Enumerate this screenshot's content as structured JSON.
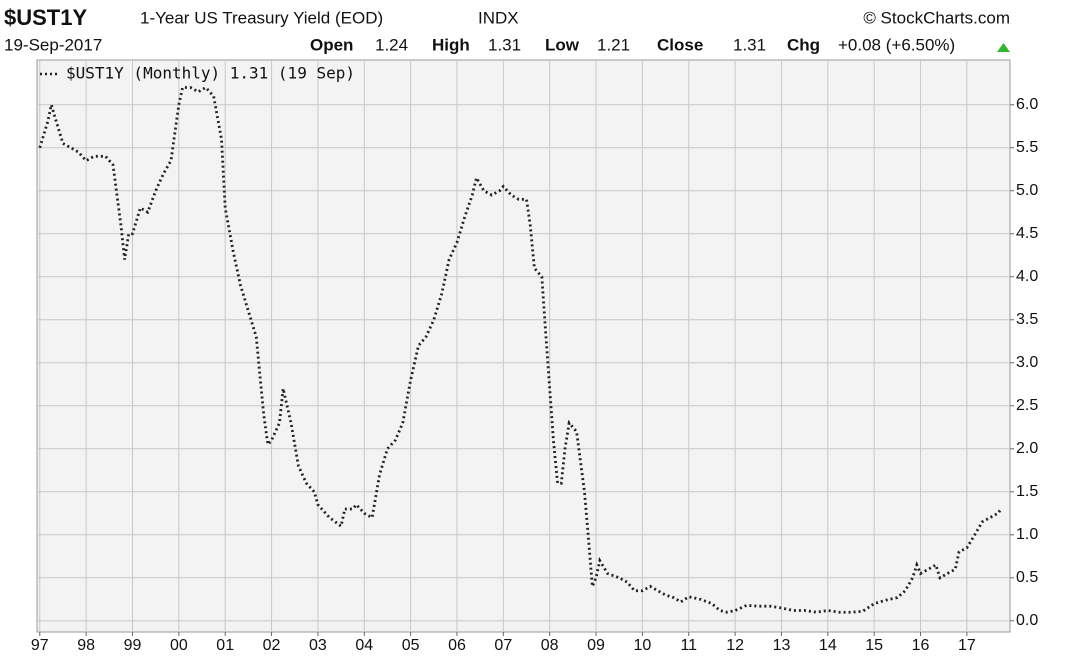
{
  "header": {
    "symbol": "$UST1Y",
    "name": "1-Year US Treasury Yield (EOD)",
    "exchange": "INDX",
    "source": "© StockCharts.com",
    "date": "19-Sep-2017",
    "quote": [
      {
        "label": "Open",
        "value": "1.24"
      },
      {
        "label": "High",
        "value": "1.31"
      },
      {
        "label": "Low",
        "value": "1.21"
      },
      {
        "label": "Close",
        "value": "1.31"
      },
      {
        "label": "Chg",
        "value": "+0.08 (+6.50%)"
      }
    ]
  },
  "chart_data": {
    "type": "line",
    "grid": true,
    "line_style": "dotted",
    "xlim": [
      1996.94,
      2017.93
    ],
    "ylim": [
      -0.13,
      6.52
    ],
    "xticks": [
      {
        "value": 1997,
        "label": "97"
      },
      {
        "value": 1998,
        "label": "98"
      },
      {
        "value": 1999,
        "label": "99"
      },
      {
        "value": 2000,
        "label": "00"
      },
      {
        "value": 2001,
        "label": "01"
      },
      {
        "value": 2002,
        "label": "02"
      },
      {
        "value": 2003,
        "label": "03"
      },
      {
        "value": 2004,
        "label": "04"
      },
      {
        "value": 2005,
        "label": "05"
      },
      {
        "value": 2006,
        "label": "06"
      },
      {
        "value": 2007,
        "label": "07"
      },
      {
        "value": 2008,
        "label": "08"
      },
      {
        "value": 2009,
        "label": "09"
      },
      {
        "value": 2010,
        "label": "10"
      },
      {
        "value": 2011,
        "label": "11"
      },
      {
        "value": 2012,
        "label": "12"
      },
      {
        "value": 2013,
        "label": "13"
      },
      {
        "value": 2014,
        "label": "14"
      },
      {
        "value": 2015,
        "label": "15"
      },
      {
        "value": 2016,
        "label": "16"
      },
      {
        "value": 2017,
        "label": "17"
      }
    ],
    "yticks": [
      {
        "value": 0,
        "label": "0.0"
      },
      0.5,
      {
        "value": 1,
        "label": "1.0"
      },
      1.5,
      {
        "value": 2,
        "label": "2.0"
      },
      2.5,
      {
        "value": 3,
        "label": "3.0"
      },
      3.5,
      {
        "value": 4,
        "label": "4.0"
      },
      4.5,
      {
        "value": 5,
        "label": "5.0"
      },
      5.5,
      {
        "value": 6,
        "label": "6.0"
      }
    ],
    "x": [
      1997.0,
      1997.17,
      1997.25,
      1997.33,
      1997.5,
      1997.67,
      1997.83,
      1998.0,
      1998.17,
      1998.42,
      1998.58,
      1998.75,
      1998.83,
      1998.92,
      1999.0,
      1999.17,
      1999.33,
      1999.5,
      1999.67,
      1999.83,
      2000.0,
      2000.08,
      2000.25,
      2000.42,
      2000.58,
      2000.75,
      2000.92,
      2001.0,
      2001.17,
      2001.33,
      2001.5,
      2001.67,
      2001.83,
      2001.92,
      2002.0,
      2002.17,
      2002.25,
      2002.42,
      2002.58,
      2002.75,
      2002.92,
      2003.0,
      2003.25,
      2003.5,
      2003.58,
      2003.75,
      2003.83,
      2004.0,
      2004.17,
      2004.33,
      2004.5,
      2004.67,
      2004.83,
      2005.0,
      2005.17,
      2005.33,
      2005.5,
      2005.67,
      2005.83,
      2006.0,
      2006.17,
      2006.33,
      2006.42,
      2006.58,
      2006.75,
      2006.92,
      2007.0,
      2007.17,
      2007.33,
      2007.5,
      2007.58,
      2007.67,
      2007.83,
      2007.92,
      2008.0,
      2008.08,
      2008.17,
      2008.25,
      2008.33,
      2008.42,
      2008.5,
      2008.58,
      2008.75,
      2008.83,
      2008.92,
      2009.0,
      2009.08,
      2009.25,
      2009.5,
      2009.67,
      2009.83,
      2010.0,
      2010.17,
      2010.33,
      2010.5,
      2010.67,
      2010.83,
      2011.0,
      2011.25,
      2011.5,
      2011.67,
      2011.83,
      2012.0,
      2012.25,
      2012.5,
      2012.75,
      2013.0,
      2013.25,
      2013.5,
      2013.75,
      2014.0,
      2014.25,
      2014.5,
      2014.75,
      2015.0,
      2015.25,
      2015.5,
      2015.67,
      2015.83,
      2015.92,
      2016.0,
      2016.17,
      2016.33,
      2016.42,
      2016.58,
      2016.75,
      2016.83,
      2017.0,
      2017.17,
      2017.33,
      2017.5,
      2017.67,
      2017.75
    ],
    "series": [
      {
        "name": "$UST1Y (Monthly) 1.31 (19 Sep)",
        "color": "#222222",
        "values": [
          5.5,
          5.8,
          6.0,
          5.85,
          5.55,
          5.5,
          5.45,
          5.35,
          5.4,
          5.4,
          5.3,
          4.6,
          4.2,
          4.5,
          4.5,
          4.8,
          4.75,
          5.0,
          5.2,
          5.35,
          6.0,
          6.2,
          6.2,
          6.15,
          6.2,
          6.1,
          5.6,
          4.8,
          4.3,
          3.9,
          3.6,
          3.3,
          2.4,
          2.05,
          2.1,
          2.3,
          2.7,
          2.3,
          1.8,
          1.6,
          1.5,
          1.35,
          1.2,
          1.1,
          1.3,
          1.3,
          1.35,
          1.25,
          1.2,
          1.7,
          2.0,
          2.1,
          2.3,
          2.8,
          3.2,
          3.3,
          3.5,
          3.8,
          4.2,
          4.4,
          4.7,
          4.95,
          5.15,
          5.0,
          4.95,
          5.0,
          5.05,
          4.95,
          4.9,
          4.9,
          4.6,
          4.1,
          4.0,
          3.3,
          2.7,
          2.1,
          1.6,
          1.6,
          2.0,
          2.3,
          2.25,
          2.2,
          1.5,
          1.0,
          0.4,
          0.5,
          0.7,
          0.55,
          0.5,
          0.45,
          0.35,
          0.35,
          0.4,
          0.35,
          0.3,
          0.27,
          0.22,
          0.28,
          0.25,
          0.2,
          0.12,
          0.1,
          0.12,
          0.18,
          0.17,
          0.17,
          0.15,
          0.12,
          0.12,
          0.1,
          0.12,
          0.1,
          0.1,
          0.11,
          0.2,
          0.24,
          0.27,
          0.35,
          0.5,
          0.65,
          0.55,
          0.6,
          0.65,
          0.5,
          0.55,
          0.6,
          0.8,
          0.85,
          1.0,
          1.15,
          1.2,
          1.25,
          1.31
        ]
      }
    ]
  }
}
